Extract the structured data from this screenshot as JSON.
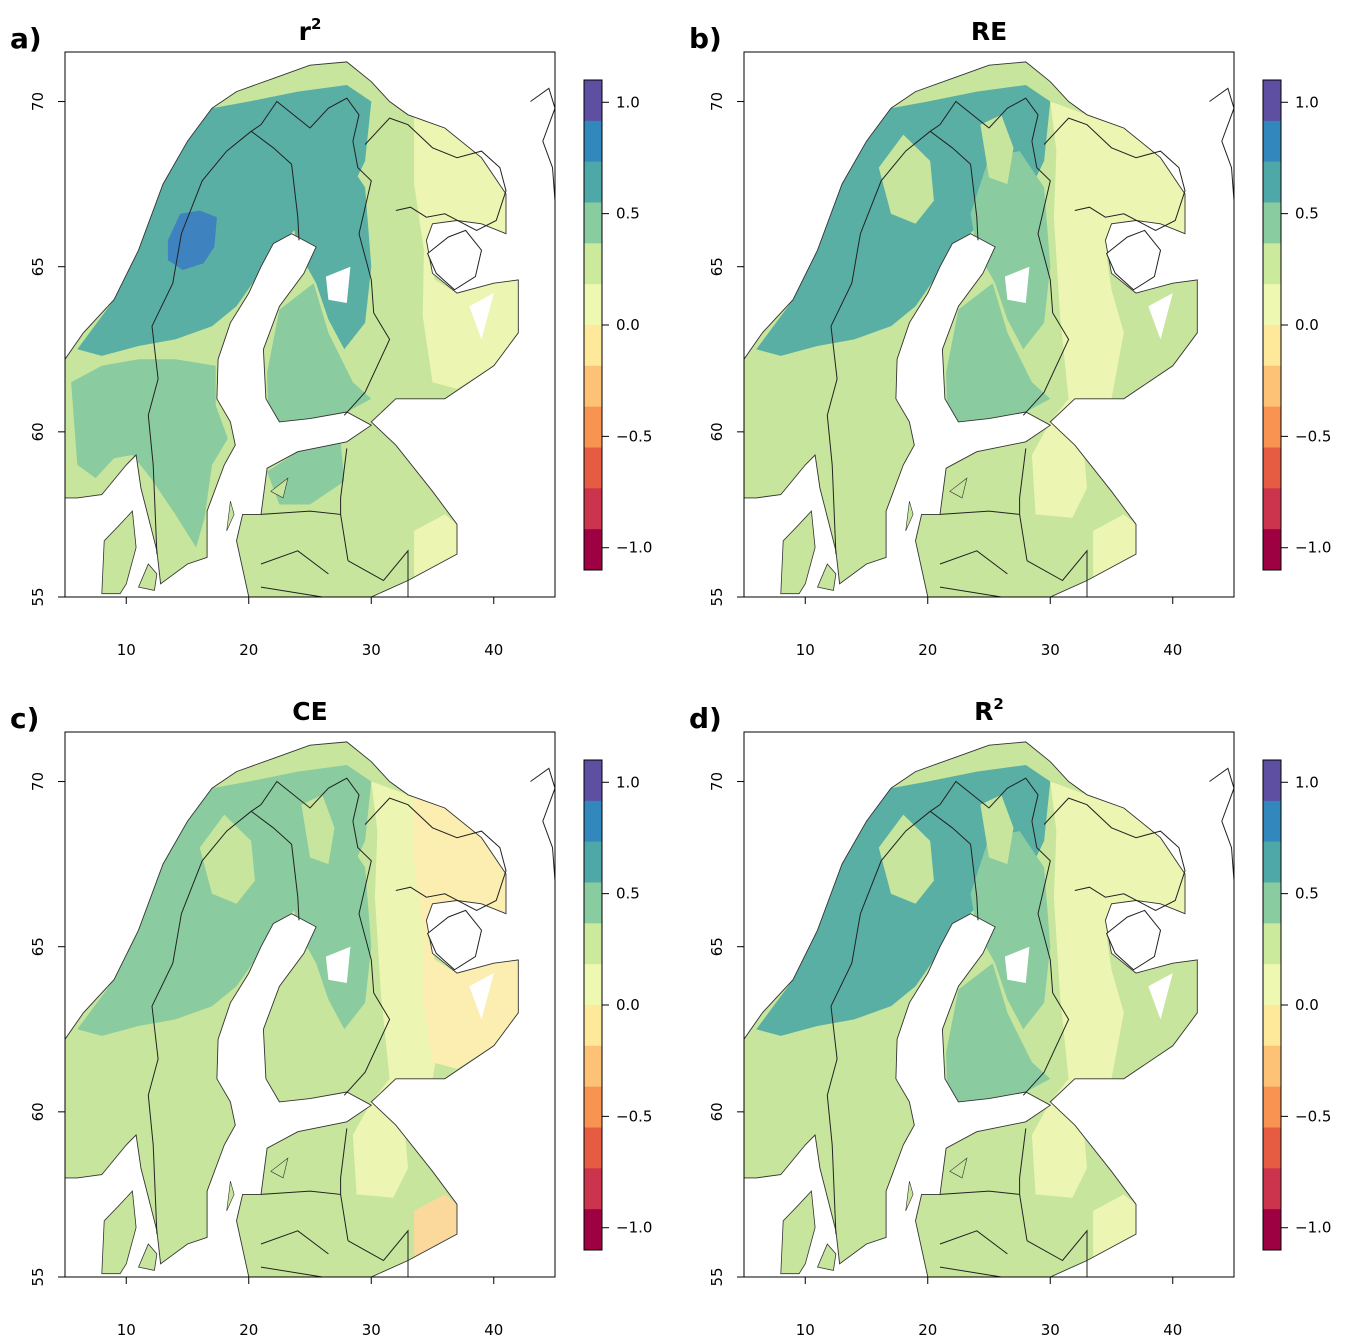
{
  "panels": [
    {
      "letter": "a)",
      "title": "r",
      "title_sup": "2",
      "variant": "r2_small"
    },
    {
      "letter": "b)",
      "title": "RE",
      "title_sup": "",
      "variant": "re"
    },
    {
      "letter": "c)",
      "title": "CE",
      "title_sup": "",
      "variant": "ce"
    },
    {
      "letter": "d)",
      "title": "R",
      "title_sup": "2",
      "variant": "r2_big"
    }
  ],
  "axes": {
    "x_ticks": [
      10,
      20,
      30,
      40
    ],
    "y_ticks": [
      55,
      60,
      65,
      70
    ],
    "x_range": [
      5,
      45
    ],
    "y_range": [
      55,
      71.5
    ]
  },
  "colorbar": {
    "ticks": [
      "1.0",
      "0.5",
      "0.0",
      "−0.5",
      "−1.0"
    ],
    "tick_values": [
      1.0,
      0.5,
      0.0,
      -0.5,
      -1.0
    ],
    "range": [
      -1.1,
      1.1
    ],
    "colors": [
      "#5e4fa2",
      "#3288bd",
      "#4fa8a8",
      "#88cc9f",
      "#ccea9b",
      "#eef8b0",
      "#fee99a",
      "#fdc275",
      "#f99352",
      "#e55c43",
      "#cc334c",
      "#9e0142"
    ]
  },
  "region_colors": {
    "dark_blue": "#3f82c0",
    "teal": "#5aafa5",
    "green": "#8acca0",
    "lightgreen": "#c7e59c",
    "paleyellow": "#edf5b2",
    "cream": "#fbeeb0",
    "peach": "#fbd99c"
  }
}
